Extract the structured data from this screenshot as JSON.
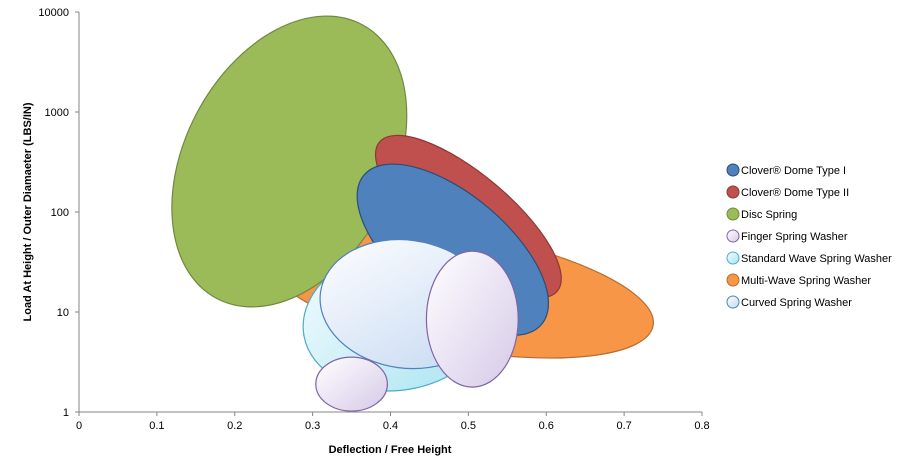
{
  "chart_data": {
    "type": "bubble-region",
    "title": "",
    "xlabel": "Deflection / Free Height",
    "ylabel": "Load At Height / Outer Diamaeter (LBS/IN)",
    "xlim": [
      0,
      0.8
    ],
    "ylim": [
      1,
      10000
    ],
    "yscale": "log",
    "xticks": [
      "0",
      "0.1",
      "0.2",
      "0.3",
      "0.4",
      "0.5",
      "0.6",
      "0.7",
      "0.8"
    ],
    "yticks": [
      "1",
      "10",
      "100",
      "1000",
      "10000"
    ],
    "grid": false,
    "legend_position": "right",
    "series": [
      {
        "name": "Clover® Dome Type I",
        "color": "#4f81bd",
        "stroke": "#2c4d75",
        "center": [
          0.48,
          42
        ],
        "rx": 0.149,
        "ry_decades": 0.55,
        "angle": 40
      },
      {
        "name": "Clover® Dome Type II",
        "color": "#c0504d",
        "stroke": "#8c3836",
        "center": [
          0.5,
          90
        ],
        "rx": 0.149,
        "ry_decades": 0.42,
        "angle": 40
      },
      {
        "name": "Disc Spring",
        "color": "#9bbb59",
        "stroke": "#71893f",
        "center": [
          0.27,
          320
        ],
        "rx": 0.134,
        "ry_decades": 1.55,
        "angle": 28
      },
      {
        "name": "Finger Spring Washer",
        "color": "#e2d7ee",
        "stroke": "#8064a2",
        "regions": [
          {
            "center": [
              0.35,
              1.9
            ],
            "rx": 0.046,
            "ry_decades": 0.27,
            "angle": 0
          },
          {
            "center": [
              0.505,
              8.5
            ],
            "rx": 0.059,
            "ry_decades": 0.68,
            "angle": 0
          }
        ]
      },
      {
        "name": "Standard Wave Spring Washer",
        "color": "#c9edf5",
        "stroke": "#4bacc6",
        "center": [
          0.41,
          8.5
        ],
        "rx": 0.123,
        "ry_decades": 0.71,
        "angle": -10
      },
      {
        "name": "Multi-Wave Spring Washer",
        "color": "#f79646",
        "stroke": "#b66d31",
        "center": [
          0.49,
          16
        ],
        "rx": 0.251,
        "ry_decades": 0.58,
        "angle": 10
      },
      {
        "name": "Curved Spring Washer",
        "color": "#dbe7f7",
        "stroke": "#4f81bd",
        "center": [
          0.42,
          12
        ],
        "rx": 0.111,
        "ry_decades": 0.64,
        "angle": 8
      }
    ],
    "draw_order": [
      "Multi-Wave Spring Washer",
      "Disc Spring",
      "Clover® Dome Type II",
      "Clover® Dome Type I",
      "Standard Wave Spring Washer",
      "Curved Spring Washer",
      "Finger Spring Washer"
    ]
  }
}
